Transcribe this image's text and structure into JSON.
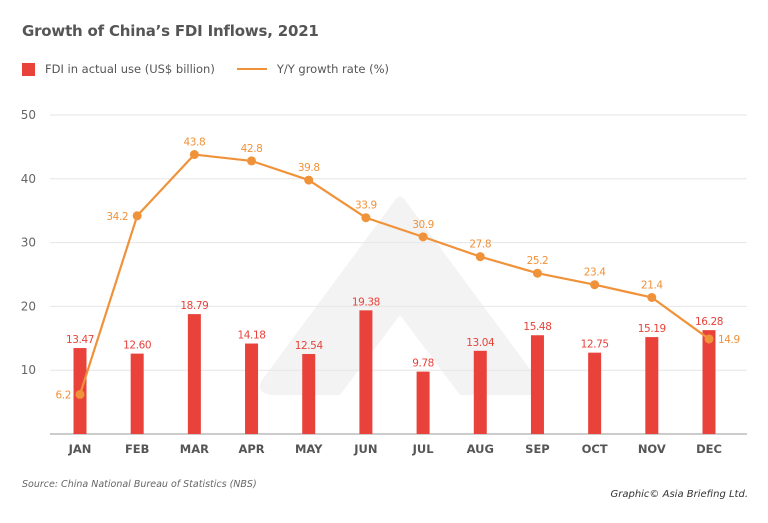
{
  "chart_data": {
    "type": "bar",
    "title": "Growth of China’s FDI Inflows, 2021",
    "xlabel": "",
    "ylabel": "",
    "ylim": [
      0,
      50
    ],
    "yticks": [
      10,
      20,
      30,
      40,
      50
    ],
    "grid": true,
    "legend_position": "top-left",
    "categories": [
      "JAN",
      "FEB",
      "MAR",
      "APR",
      "MAY",
      "JUN",
      "JUL",
      "AUG",
      "SEP",
      "OCT",
      "NOV",
      "DEC"
    ],
    "series": [
      {
        "name": "FDI in actual use (US$ billion)",
        "type": "bar",
        "color": "#e8423a",
        "values": [
          13.47,
          12.6,
          18.79,
          14.18,
          12.54,
          19.38,
          9.78,
          13.04,
          15.48,
          12.75,
          15.19,
          16.28
        ],
        "labels": [
          "13.47",
          "12.60",
          "18.79",
          "14.18",
          "12.54",
          "19.38",
          "9.78",
          "13.04",
          "15.48",
          "12.75",
          "15.19",
          "16.28"
        ]
      },
      {
        "name": "Y/Y growth rate (%)",
        "type": "line",
        "color": "#f0923a",
        "values": [
          6.2,
          34.2,
          43.8,
          42.8,
          39.8,
          33.9,
          30.9,
          27.8,
          25.2,
          23.4,
          21.4,
          14.9
        ],
        "labels": [
          "6.2",
          "34.2",
          "43.8",
          "42.8",
          "39.8",
          "33.9",
          "30.9",
          "27.8",
          "25.2",
          "23.4",
          "21.4",
          "14.9"
        ]
      }
    ]
  },
  "legend": {
    "bar_label": "FDI in actual use (US$ billion)",
    "line_label": "Y/Y growth rate (%)"
  },
  "footer": {
    "source": "Source: China National Bureau of Statistics (NBS)",
    "credit": "Graphic© Asia Briefing Ltd."
  }
}
